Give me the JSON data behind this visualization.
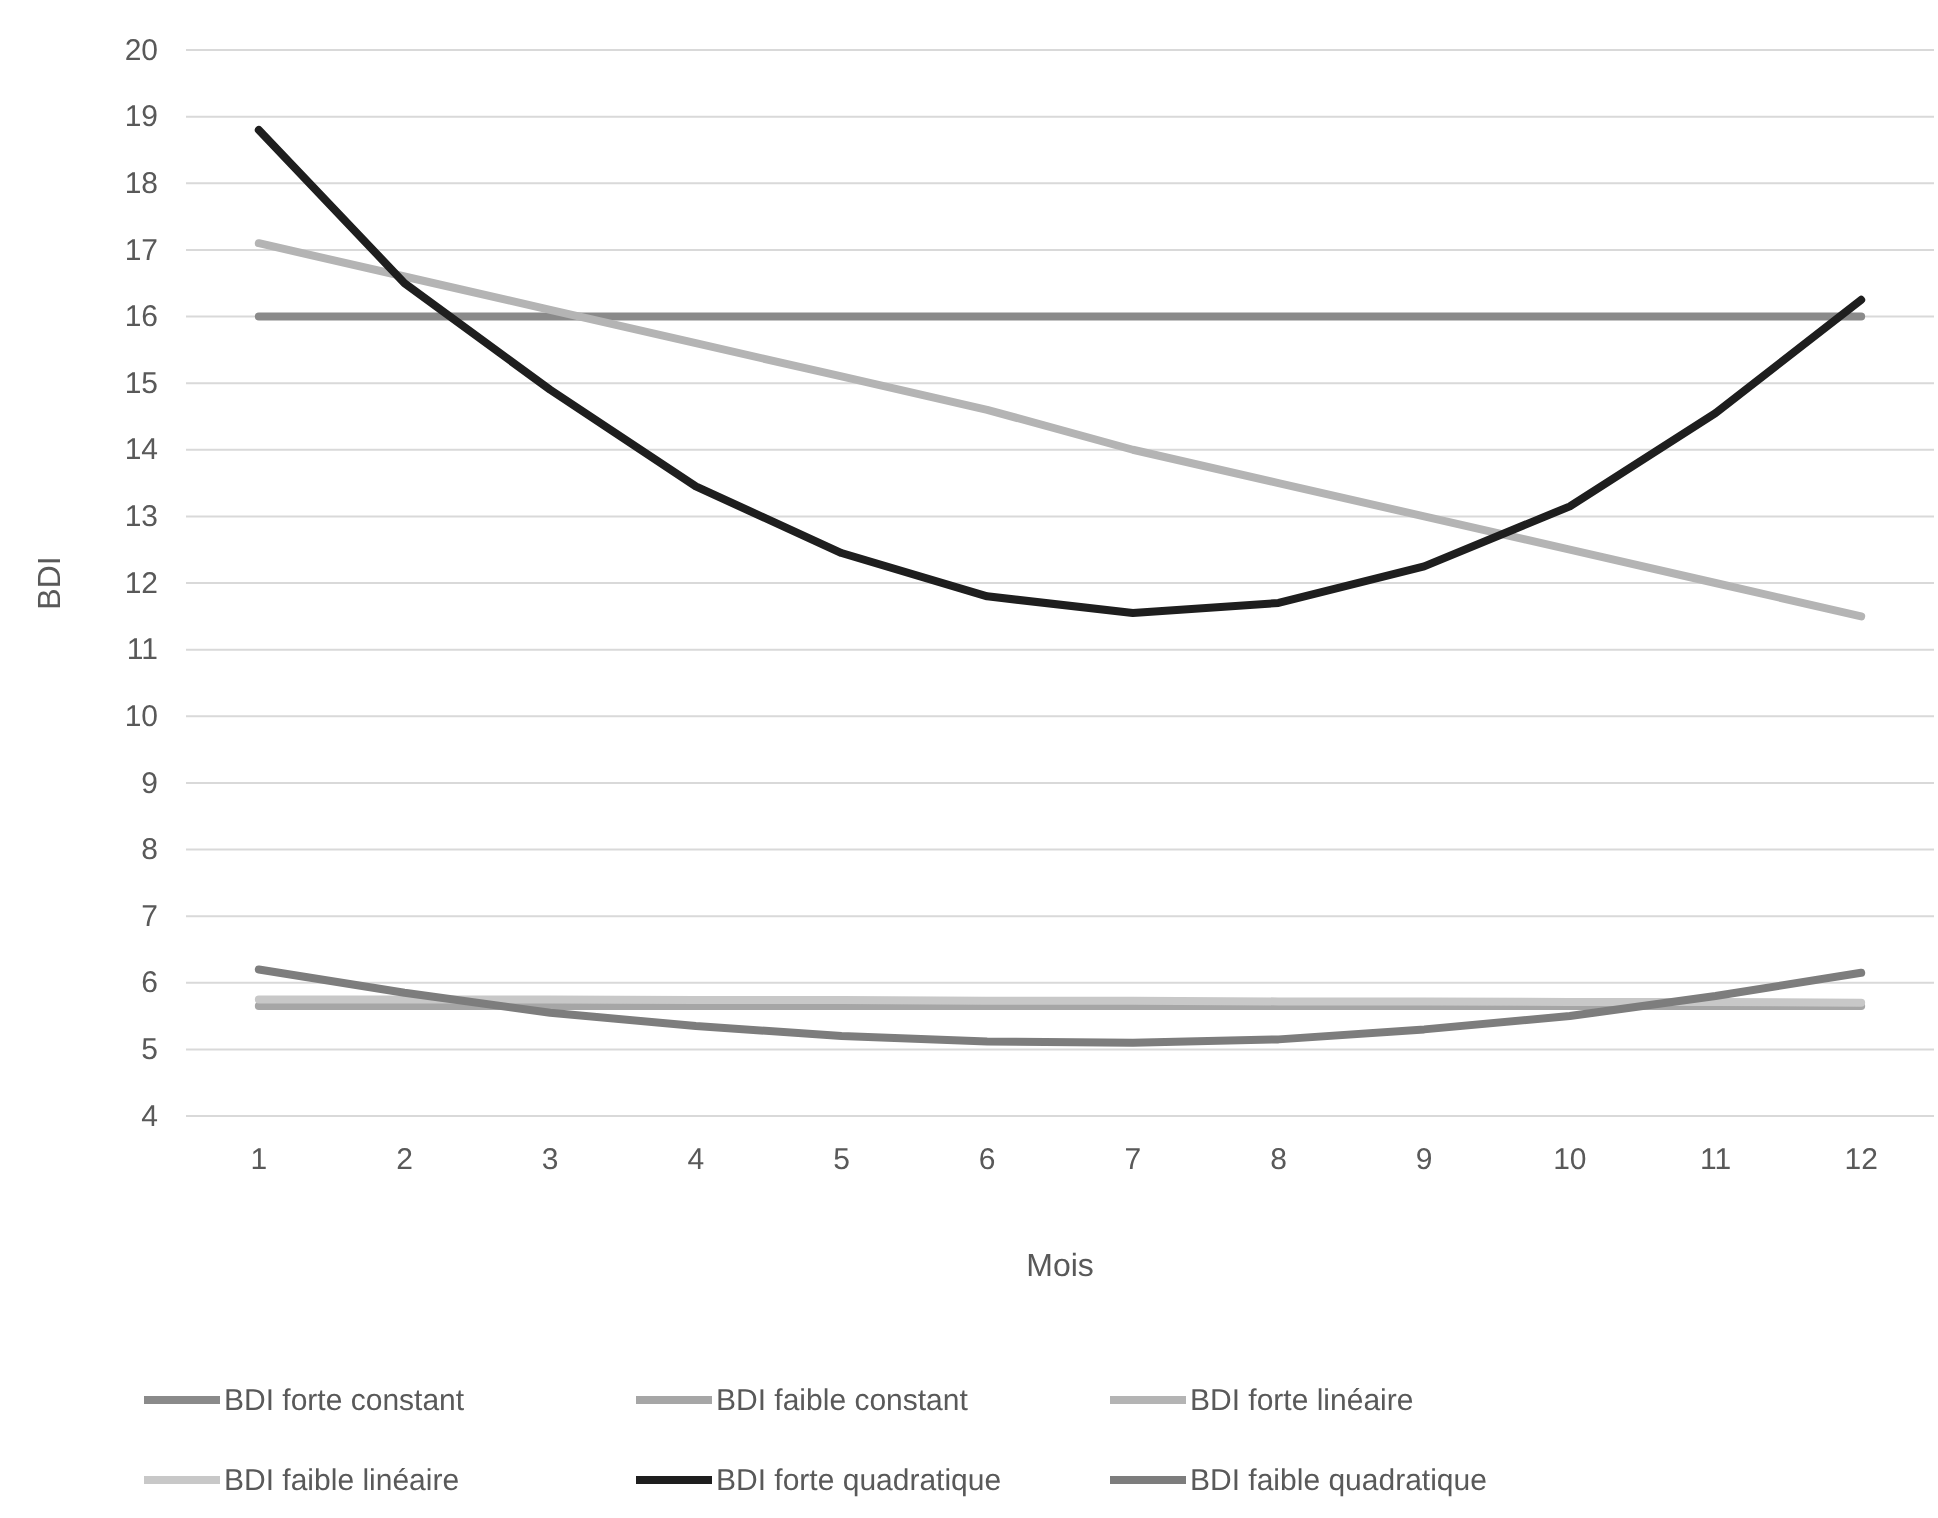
{
  "chart_data": {
    "type": "line",
    "xlabel": "Mois",
    "ylabel": "BDI",
    "categories": [
      "1",
      "2",
      "3",
      "4",
      "5",
      "6",
      "7",
      "8",
      "9",
      "10",
      "11",
      "12"
    ],
    "ylim": [
      4,
      20
    ],
    "yticks": [
      4,
      5,
      6,
      7,
      8,
      9,
      10,
      11,
      12,
      13,
      14,
      15,
      16,
      17,
      18,
      19,
      20
    ],
    "grid": "y",
    "legend": "bottom",
    "marker": "none",
    "line_style": "solid",
    "series": [
      {
        "name": "BDI forte constant",
        "color": "#8a8a8a",
        "values": [
          16,
          16,
          16,
          16,
          16,
          16,
          16,
          16,
          16,
          16,
          16,
          16
        ]
      },
      {
        "name": "BDI faible constant",
        "color": "#a6a6a6",
        "values": [
          5.65,
          5.65,
          5.65,
          5.65,
          5.65,
          5.65,
          5.65,
          5.65,
          5.65,
          5.65,
          5.65,
          5.65
        ]
      },
      {
        "name": "BDI forte linéaire",
        "color": "#b4b4b4",
        "values": [
          17.1,
          16.6,
          16.1,
          15.6,
          15.1,
          14.6,
          14.0,
          13.5,
          13.0,
          12.5,
          12.0,
          11.5
        ]
      },
      {
        "name": "BDI faible linéaire",
        "color": "#c8c8c8",
        "values": [
          5.75,
          5.75,
          5.75,
          5.74,
          5.74,
          5.73,
          5.73,
          5.72,
          5.72,
          5.71,
          5.71,
          5.7
        ]
      },
      {
        "name": "BDI forte quadratique",
        "color": "#1e1e1e",
        "values": [
          18.8,
          16.5,
          14.9,
          13.45,
          12.45,
          11.8,
          11.55,
          11.7,
          12.25,
          13.15,
          14.55,
          16.25
        ]
      },
      {
        "name": "BDI faible quadratique",
        "color": "#7d7d7d",
        "values": [
          6.2,
          5.85,
          5.55,
          5.35,
          5.2,
          5.12,
          5.1,
          5.15,
          5.3,
          5.5,
          5.8,
          6.15
        ]
      }
    ]
  }
}
